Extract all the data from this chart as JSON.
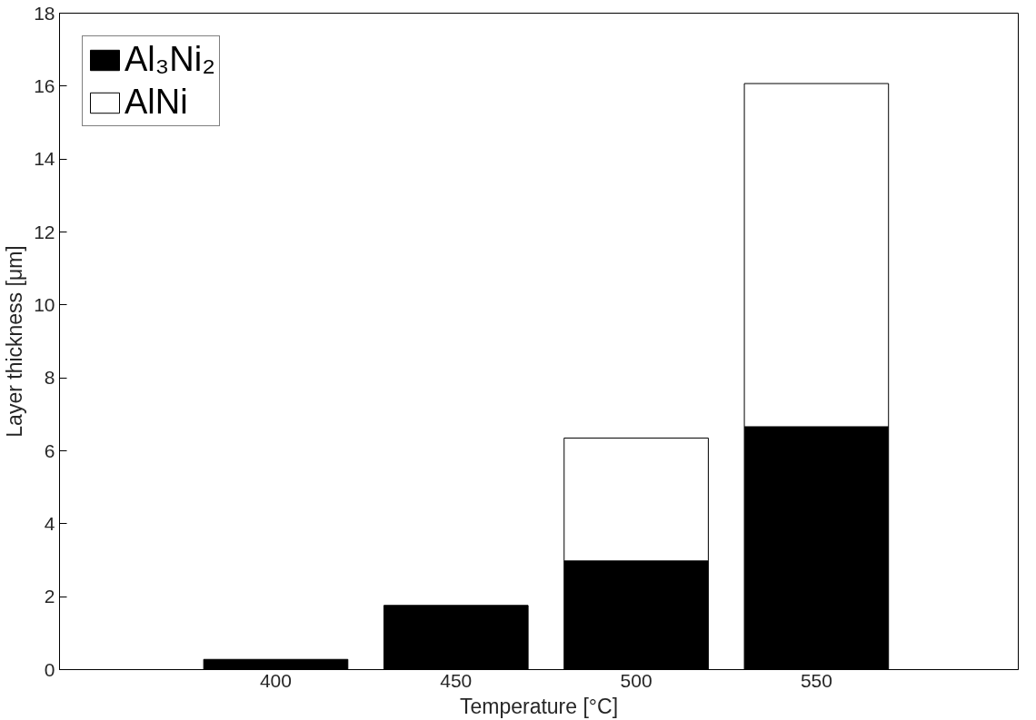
{
  "chart_data": {
    "type": "bar",
    "stacked": true,
    "xlabel": "Temperature [°C]",
    "ylabel": "Layer thickness [μm]",
    "x": [
      400,
      450,
      500,
      550
    ],
    "series": [
      {
        "name": "Al₃Ni₂",
        "color": "#000000",
        "values": [
          0.28,
          1.76,
          2.98,
          6.66
        ]
      },
      {
        "name": "AlNi",
        "color": "#ffffff",
        "values": [
          null,
          null,
          3.37,
          9.41
        ]
      }
    ],
    "xlim": [
      340,
      606
    ],
    "xticks": [
      400,
      450,
      500,
      550
    ],
    "ylim": [
      0,
      18
    ],
    "yticks": [
      0,
      2,
      4,
      6,
      8,
      10,
      12,
      14,
      16,
      18
    ],
    "grid": false,
    "legend": "top left"
  }
}
